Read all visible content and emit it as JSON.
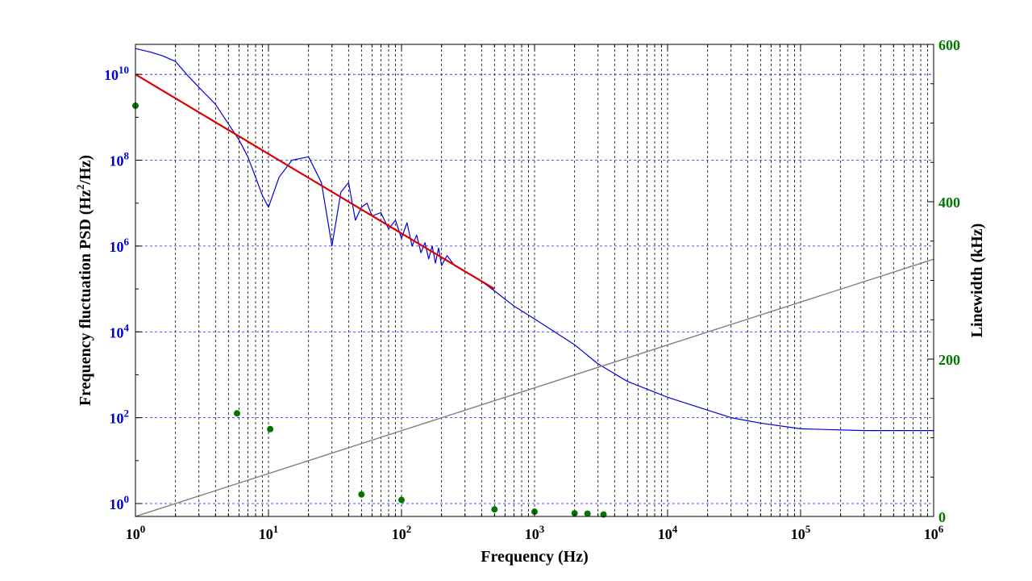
{
  "colors": {
    "left_axis": "#0000cc",
    "right_axis": "#007700",
    "psd": "#0000dd",
    "fit": "#dd0000",
    "linewidth_line": "#808080",
    "markers": "#007700",
    "grid": "#1a1aff"
  },
  "chart_data": {
    "type": "line",
    "x_scale": "log",
    "xlabel": "Frequency (Hz)",
    "ylabel_left": "Frequency fluctuation PSD (Hz²/Hz)",
    "ylabel_right": "Linewidth (kHz)",
    "xlim": [
      1,
      1000000
    ],
    "ylim_left": [
      0.5,
      50000000000
    ],
    "y_left_scale": "log",
    "ylim_right": [
      0,
      600
    ],
    "grid": true,
    "x_ticks": [
      {
        "base": "10",
        "exp": "0"
      },
      {
        "base": "10",
        "exp": "1"
      },
      {
        "base": "10",
        "exp": "2"
      },
      {
        "base": "10",
        "exp": "3"
      },
      {
        "base": "10",
        "exp": "4"
      },
      {
        "base": "10",
        "exp": "5"
      },
      {
        "base": "10",
        "exp": "6"
      }
    ],
    "y_left_ticks": [
      {
        "base": "10",
        "exp": "0"
      },
      {
        "base": "10",
        "exp": "2"
      },
      {
        "base": "10",
        "exp": "4"
      },
      {
        "base": "10",
        "exp": "6"
      },
      {
        "base": "10",
        "exp": "8"
      },
      {
        "base": "10",
        "exp": "10"
      }
    ],
    "y_right_ticks": [
      "0",
      "200",
      "400",
      "600"
    ],
    "series": [
      {
        "name": "",
        "axis": "left",
        "style": "line",
        "color": "#0000dd",
        "x": [
          1,
          1.3,
          1.6,
          2,
          2.5,
          3,
          4,
          5,
          6,
          7,
          8,
          9,
          10,
          12,
          15,
          20,
          25,
          30,
          35,
          40,
          45,
          50,
          55,
          60,
          70,
          80,
          90,
          100,
          110,
          120,
          130,
          140,
          150,
          160,
          170,
          180,
          190,
          200,
          220,
          250,
          300,
          400,
          500,
          700,
          1000,
          2000,
          3000,
          5000,
          10000,
          20000,
          30000,
          50000,
          100000,
          300000,
          1000000
        ],
        "y": [
          40000000000,
          33000000000,
          27000000000,
          20000000000,
          9000000000,
          5000000000,
          2000000000,
          700000000,
          300000000,
          120000000,
          40000000,
          15000000,
          8000000,
          40000000,
          100000000,
          120000000,
          30000000,
          1000000,
          18000000,
          30000000,
          4000000,
          8000000,
          10000000,
          5000000,
          6000000,
          2500000,
          4000000,
          1500000,
          3500000,
          1000000,
          1800000,
          700000,
          1200000,
          500000,
          1000000,
          400000,
          900000,
          350000,
          600000,
          350000,
          250000,
          150000,
          90000,
          40000,
          20000,
          5000,
          1800,
          700,
          300,
          150,
          100,
          75,
          55,
          50,
          50
        ]
      },
      {
        "name": "",
        "axis": "left",
        "style": "line",
        "color": "#dd0000",
        "x": [
          1,
          500
        ],
        "y": [
          10000000000,
          100000
        ]
      },
      {
        "name": "",
        "axis": "right",
        "style": "line",
        "color": "#808080",
        "x": [
          1,
          1000000
        ],
        "y": [
          0,
          327
        ]
      },
      {
        "name": "",
        "axis": "right",
        "style": "markers",
        "color": "#007700",
        "x": [
          1,
          5.8,
          10.3,
          50,
          100,
          500,
          1000,
          2000,
          2500,
          3300
        ],
        "y": [
          522,
          131,
          111,
          28,
          21,
          9,
          6,
          4,
          3.5,
          2.5
        ]
      }
    ]
  }
}
